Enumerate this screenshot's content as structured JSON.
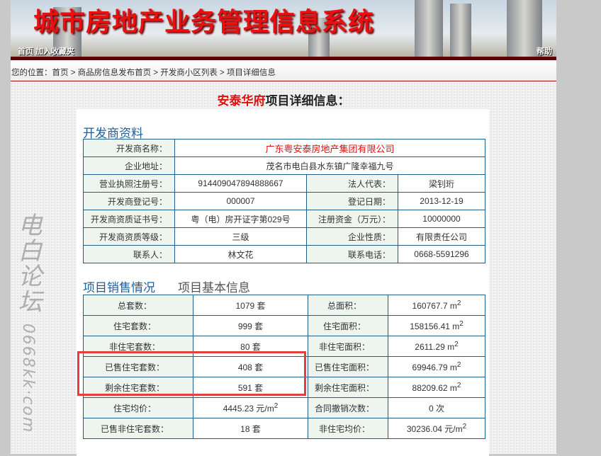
{
  "header": {
    "title": "城市房地产业务管理信息系统",
    "links": [
      "首页",
      "加入收藏夹"
    ],
    "help": "帮助"
  },
  "breadcrumb": {
    "prefix": "您的位置：",
    "items": [
      "首页",
      "商品房信息发布首页",
      "开发商小区列表",
      "项目详细信息"
    ],
    "sep": " > "
  },
  "page_title": {
    "project": "安泰华府",
    "suffix": "项目详细信息："
  },
  "developer": {
    "heading": "开发商资料",
    "name_label": "开发商名称：",
    "name": "广东粤安泰房地产集团有限公司",
    "address_label": "企业地址：",
    "address": "茂名市电白县水东镇广隆幸福九号",
    "rows": [
      {
        "l1": "营业执照注册号：",
        "v1": "914409047894888667",
        "l2": "法人代表：",
        "v2": "梁钊珩"
      },
      {
        "l1": "开发商登记号：",
        "v1": "000007",
        "l2": "登记日期：",
        "v2": "2013-12-19"
      },
      {
        "l1": "开发商资质证书号：",
        "v1": "粤（电）房开证字第029号",
        "l2": "注册资金（万元）：",
        "v2": "10000000"
      },
      {
        "l1": "开发商资质等级：",
        "v1": "三级",
        "l2": "企业性质：",
        "v2": "有限责任公司"
      },
      {
        "l1": "联系人：",
        "v1": "林文花",
        "l2": "联系电话：",
        "v2": "0668-5591296"
      }
    ]
  },
  "tabs": [
    {
      "label": "项目销售情况",
      "active": true
    },
    {
      "label": "项目基本信息",
      "active": false
    }
  ],
  "sales": {
    "rows": [
      {
        "l1": "总套数：",
        "v1": "1079 套",
        "l2": "总面积：",
        "v2": "160767.7 m",
        "s2": "2"
      },
      {
        "l1": "住宅套数：",
        "v1": "999 套",
        "l2": "住宅面积：",
        "v2": "158156.41 m",
        "s2": "2"
      },
      {
        "l1": "非住宅套数：",
        "v1": "80 套",
        "l2": "非住宅面积：",
        "v2": "2611.29 m",
        "s2": "2"
      },
      {
        "l1": "已售住宅套数：",
        "v1": "408 套",
        "l2": "已售住宅面积：",
        "v2": "69946.79 m",
        "s2": "2"
      },
      {
        "l1": "剩余住宅套数：",
        "v1": "591 套",
        "l2": "剩余住宅面积：",
        "v2": "88209.62 m",
        "s2": "2"
      },
      {
        "l1": "住宅均价：",
        "v1": "4445.23 元/m",
        "s1": "2",
        "l2": "合同撤销次数：",
        "v2": "0 次"
      },
      {
        "l1": "已售非住宅套数：",
        "v1": "18 套",
        "l2": "非住宅均价：",
        "v2": "30236.04 元/m",
        "s2": "2"
      }
    ]
  },
  "watermark": "电白论坛 0668kk.com",
  "colors": {
    "accent": "#1f5e9c",
    "title_red": "#e01010",
    "highlight": "#e04040"
  }
}
